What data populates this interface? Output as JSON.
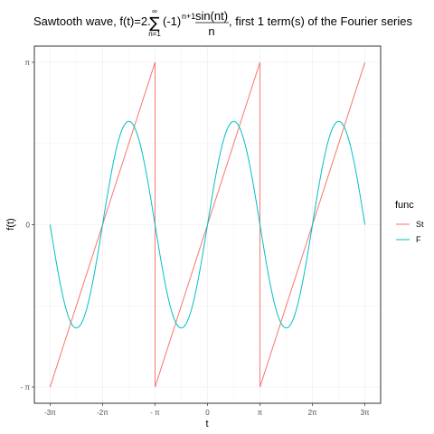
{
  "chart_data": {
    "type": "line",
    "title": {
      "prefix": "Sawtooth wave, f(t)=2.",
      "sum_symbol": "∑",
      "sum_upper": "∞",
      "sum_lower": "n=1",
      "base": "(-1)",
      "exponent": "n+1",
      "numerator": "sin(nt)",
      "denominator": "n",
      "suffix": ", first 1 term(s) of the Fourier series"
    },
    "xlabel": "t",
    "ylabel": "f(t)",
    "xlim": [
      -9.42478,
      9.42478
    ],
    "ylim": [
      -3.14159,
      3.14159
    ],
    "x_ticks": [
      {
        "value": -9.42478,
        "label": "-3π"
      },
      {
        "value": -6.28319,
        "label": "-2π"
      },
      {
        "value": -3.14159,
        "label": "- π"
      },
      {
        "value": 0,
        "label": "0"
      },
      {
        "value": 3.14159,
        "label": "π"
      },
      {
        "value": 6.28319,
        "label": "2π"
      },
      {
        "value": 9.42478,
        "label": "3π"
      }
    ],
    "y_ticks": [
      {
        "value": -3.14159,
        "label": "- π"
      },
      {
        "value": 0,
        "label": "0"
      },
      {
        "value": 3.14159,
        "label": "π"
      }
    ],
    "grid": true,
    "legend": {
      "title": "func",
      "position": "right",
      "entries": [
        {
          "name": "St",
          "color": "#F8766D"
        },
        {
          "name": "F",
          "color": "#00BFC4"
        }
      ]
    },
    "series": [
      {
        "name": "St",
        "color": "#F8766D",
        "x": [
          -9.42478,
          -3.14159,
          -3.14159,
          3.14159,
          3.14159,
          9.42478
        ],
        "y": [
          -3.14159,
          3.14159,
          -3.14159,
          3.14159,
          -3.14159,
          3.14159
        ]
      },
      {
        "name": "F",
        "color": "#00BFC4",
        "x": [
          -9.42478,
          -8.63938,
          -7.85398,
          -7.06858,
          -6.28319,
          -5.49779,
          -4.71239,
          -3.92699,
          -3.14159,
          -2.35619,
          -1.5708,
          -0.7854,
          0,
          0.7854,
          1.5708,
          2.35619,
          3.14159,
          3.92699,
          4.71239,
          5.49779,
          6.28319,
          7.06858,
          7.85398,
          8.63938,
          9.42478
        ],
        "y": [
          0,
          -1.414,
          -2,
          -1.414,
          0,
          1.414,
          2,
          1.414,
          0,
          -1.414,
          -2,
          -1.414,
          0,
          1.414,
          2,
          1.414,
          0,
          -1.414,
          -2,
          -1.414,
          0,
          1.414,
          2,
          1.414,
          0
        ]
      }
    ]
  }
}
